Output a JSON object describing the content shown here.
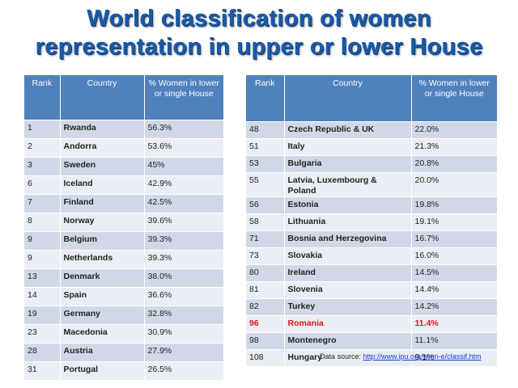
{
  "title": {
    "line1": "World classification of women",
    "line2": "representation in upper or lower House"
  },
  "colors": {
    "title": "#1a5aa6",
    "header_bg": "#4f81bd",
    "row_dark": "#d0d8e8",
    "row_light": "#e9edf4",
    "highlight": "#e8101a",
    "link": "#1a3cd6"
  },
  "table_left": {
    "headers": {
      "rank": "Rank",
      "country": "Country",
      "percent": "% Women in lower or single House"
    },
    "rows": [
      {
        "rank": "1",
        "country": "Rwanda",
        "percent": "56.3%"
      },
      {
        "rank": "2",
        "country": "Andorra",
        "percent": "53.6%"
      },
      {
        "rank": "3",
        "country": "Sweden",
        "percent": "45%"
      },
      {
        "rank": "6",
        "country": "Iceland",
        "percent": "42.9%"
      },
      {
        "rank": "7",
        "country": "Finland",
        "percent": "42.5%"
      },
      {
        "rank": "8",
        "country": "Norway",
        "percent": "39.6%"
      },
      {
        "rank": "9",
        "country": "Belgium",
        "percent": "39.3%"
      },
      {
        "rank": "9",
        "country": "Netherlands",
        "percent": "39.3%"
      },
      {
        "rank": "13",
        "country": "Denmark",
        "percent": "38.0%"
      },
      {
        "rank": "14",
        "country": "Spain",
        "percent": "36.6%"
      },
      {
        "rank": "19",
        "country": "Germany",
        "percent": "32.8%"
      },
      {
        "rank": "23",
        "country": "Macedonia",
        "percent": "30.9%"
      },
      {
        "rank": "28",
        "country": "Austria",
        "percent": "27.9%"
      },
      {
        "rank": "31",
        "country": "Portugal",
        "percent": "26.5%"
      }
    ]
  },
  "table_right": {
    "headers": {
      "rank": "Rank",
      "country": "Country",
      "percent": "% Women in lower or single House"
    },
    "rows": [
      {
        "rank": "48",
        "country": "Czech Republic & UK",
        "percent": "22.0%"
      },
      {
        "rank": "51",
        "country": "Italy",
        "percent": "21.3%"
      },
      {
        "rank": "53",
        "country": "Bulgaria",
        "percent": "20.8%"
      },
      {
        "rank": "55",
        "country": "Latvia, Luxembourg & Poland",
        "percent": "20.0%"
      },
      {
        "rank": "56",
        "country": "Estonia",
        "percent": "19.8%"
      },
      {
        "rank": "58",
        "country": "Lithuania",
        "percent": "19.1%"
      },
      {
        "rank": "71",
        "country": "Bosnia and Herzegovina",
        "percent": "16.7%"
      },
      {
        "rank": "73",
        "country": "Slovakia",
        "percent": "16.0%"
      },
      {
        "rank": "80",
        "country": "Ireland",
        "percent": "14.5%"
      },
      {
        "rank": "81",
        "country": "Slovenia",
        "percent": "14.4%"
      },
      {
        "rank": "82",
        "country": "Turkey",
        "percent": "14.2%"
      },
      {
        "rank": "96",
        "country": "Romania",
        "percent": "11.4%",
        "highlight": true
      },
      {
        "rank": "98",
        "country": "Montenegro",
        "percent": "11.1%"
      },
      {
        "rank": "108",
        "country": "Hungary",
        "percent": "9.1%"
      }
    ]
  },
  "source": {
    "label": "Data source: ",
    "link_text": "http://www.ipu.org/wmn-e/classif.htm"
  }
}
